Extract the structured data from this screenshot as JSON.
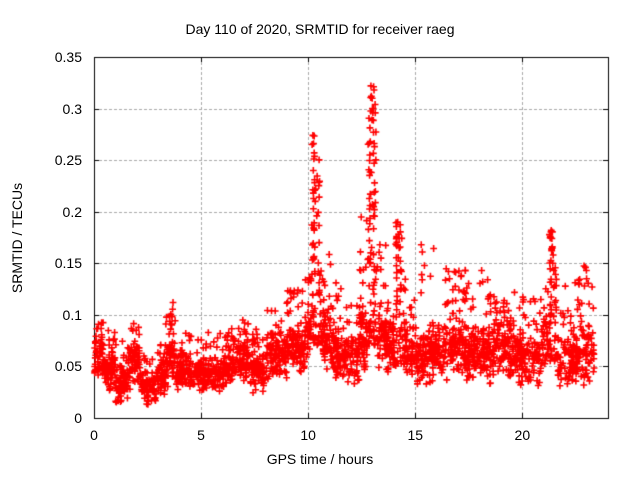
{
  "chart_data": {
    "type": "scatter",
    "title": "Day 110 of 2020, SRMTID for receiver raeg",
    "xlabel": "GPS time / hours",
    "ylabel": "SRMTID / TECUs",
    "xlim": [
      0,
      24
    ],
    "ylim": [
      0,
      0.35
    ],
    "xticks": [
      "0",
      "5",
      "10",
      "15",
      "20"
    ],
    "yticks": [
      "0",
      "0.05",
      "0.1",
      "0.15",
      "0.2",
      "0.25",
      "0.3",
      "0.35"
    ],
    "grid": true,
    "grid_style": "dashed",
    "grid_color": "#a8a8a8",
    "marker": "+",
    "marker_color": "#ff0000",
    "legend": "none",
    "data_x_range": [
      0.03,
      23.35
    ],
    "data_y_range": [
      0.008,
      0.322
    ],
    "peaks": [
      [
        3.67,
        0.1055
      ],
      [
        3.69,
        0.112
      ],
      [
        9.15,
        0.122
      ],
      [
        9.2,
        0.116
      ],
      [
        10.22,
        0.274
      ],
      [
        10.25,
        0.266
      ],
      [
        10.28,
        0.257
      ],
      [
        10.24,
        0.24
      ],
      [
        10.3,
        0.231
      ],
      [
        10.35,
        0.222
      ],
      [
        10.33,
        0.21
      ],
      [
        10.4,
        0.196
      ],
      [
        11.3,
        0.131
      ],
      [
        12.45,
        0.143
      ],
      [
        12.55,
        0.131
      ],
      [
        12.93,
        0.322
      ],
      [
        12.95,
        0.312
      ],
      [
        12.99,
        0.31
      ],
      [
        13.0,
        0.3
      ],
      [
        13.02,
        0.296
      ],
      [
        12.98,
        0.289
      ],
      [
        13.05,
        0.277
      ],
      [
        12.9,
        0.268
      ],
      [
        12.88,
        0.255
      ],
      [
        13.08,
        0.247
      ],
      [
        12.95,
        0.238
      ],
      [
        13.1,
        0.228
      ],
      [
        12.92,
        0.217
      ],
      [
        13.0,
        0.207
      ],
      [
        13.06,
        0.196
      ],
      [
        13.35,
        0.168
      ],
      [
        13.4,
        0.155
      ],
      [
        14.18,
        0.19
      ],
      [
        14.22,
        0.178
      ],
      [
        14.25,
        0.165
      ],
      [
        14.3,
        0.152
      ],
      [
        15.28,
        0.168
      ],
      [
        15.33,
        0.161
      ],
      [
        15.3,
        0.139
      ],
      [
        16.55,
        0.142
      ],
      [
        16.6,
        0.135
      ],
      [
        17.15,
        0.138
      ],
      [
        18.1,
        0.143
      ],
      [
        18.15,
        0.132
      ],
      [
        21.35,
        0.182
      ],
      [
        21.38,
        0.174
      ],
      [
        21.4,
        0.166
      ],
      [
        21.44,
        0.158
      ],
      [
        21.42,
        0.15
      ],
      [
        21.47,
        0.143
      ],
      [
        22.95,
        0.146
      ],
      [
        23.0,
        0.135
      ],
      [
        22.9,
        0.128
      ]
    ],
    "density_segments": [
      {
        "x0": 0.0,
        "x1": 0.45,
        "n": 55,
        "ylo": 0.035,
        "yhi": 0.09,
        "ymax": 0.098,
        "tail": 0.1
      },
      {
        "x0": 0.45,
        "x1": 1.0,
        "n": 70,
        "ylo": 0.022,
        "yhi": 0.07,
        "ymax": 0.085,
        "tail": 0.08
      },
      {
        "x0": 1.0,
        "x1": 1.6,
        "n": 75,
        "ylo": 0.013,
        "yhi": 0.055,
        "ymax": 0.075,
        "tail": 0.08
      },
      {
        "x0": 1.6,
        "x1": 2.15,
        "n": 70,
        "ylo": 0.025,
        "yhi": 0.08,
        "ymax": 0.092,
        "tail": 0.08
      },
      {
        "x0": 2.15,
        "x1": 2.9,
        "n": 85,
        "ylo": 0.012,
        "yhi": 0.05,
        "ymax": 0.062,
        "tail": 0.08
      },
      {
        "x0": 2.9,
        "x1": 3.35,
        "n": 55,
        "ylo": 0.018,
        "yhi": 0.06,
        "ymax": 0.075,
        "tail": 0.1
      },
      {
        "x0": 3.35,
        "x1": 3.8,
        "n": 55,
        "ylo": 0.03,
        "yhi": 0.09,
        "ymax": 0.105,
        "tail": 0.12
      },
      {
        "x0": 3.8,
        "x1": 4.5,
        "n": 80,
        "ylo": 0.025,
        "yhi": 0.07,
        "ymax": 0.085,
        "tail": 0.08
      },
      {
        "x0": 4.5,
        "x1": 5.25,
        "n": 80,
        "ylo": 0.02,
        "yhi": 0.062,
        "ymax": 0.08,
        "tail": 0.08
      },
      {
        "x0": 5.25,
        "x1": 6.25,
        "n": 100,
        "ylo": 0.022,
        "yhi": 0.065,
        "ymax": 0.085,
        "tail": 0.08
      },
      {
        "x0": 6.25,
        "x1": 7.2,
        "n": 100,
        "ylo": 0.03,
        "yhi": 0.08,
        "ymax": 0.095,
        "tail": 0.1
      },
      {
        "x0": 7.2,
        "x1": 8.0,
        "n": 90,
        "ylo": 0.022,
        "yhi": 0.072,
        "ymax": 0.088,
        "tail": 0.08
      },
      {
        "x0": 8.0,
        "x1": 9.0,
        "n": 110,
        "ylo": 0.035,
        "yhi": 0.09,
        "ymax": 0.105,
        "tail": 0.1
      },
      {
        "x0": 9.0,
        "x1": 9.85,
        "n": 105,
        "ylo": 0.04,
        "yhi": 0.095,
        "ymax": 0.125,
        "tail": 0.12
      },
      {
        "x0": 9.85,
        "x1": 10.15,
        "n": 40,
        "ylo": 0.05,
        "yhi": 0.11,
        "ymax": 0.14,
        "tail": 0.15
      },
      {
        "x0": 10.15,
        "x1": 10.6,
        "n": 65,
        "ylo": 0.07,
        "yhi": 0.16,
        "ymax": 0.274,
        "tail": 0.35,
        "cols": 2
      },
      {
        "x0": 10.6,
        "x1": 11.05,
        "n": 60,
        "ylo": 0.045,
        "yhi": 0.11,
        "ymax": 0.165,
        "tail": 0.15
      },
      {
        "x0": 11.05,
        "x1": 11.55,
        "n": 65,
        "ylo": 0.035,
        "yhi": 0.09,
        "ymax": 0.13,
        "tail": 0.1
      },
      {
        "x0": 11.55,
        "x1": 12.4,
        "n": 90,
        "ylo": 0.03,
        "yhi": 0.085,
        "ymax": 0.115,
        "tail": 0.08
      },
      {
        "x0": 12.4,
        "x1": 12.75,
        "n": 55,
        "ylo": 0.045,
        "yhi": 0.11,
        "ymax": 0.2,
        "tail": 0.2
      },
      {
        "x0": 12.75,
        "x1": 13.2,
        "n": 85,
        "ylo": 0.07,
        "yhi": 0.18,
        "ymax": 0.322,
        "tail": 0.4,
        "cols": 2
      },
      {
        "x0": 13.2,
        "x1": 13.65,
        "n": 60,
        "ylo": 0.045,
        "yhi": 0.11,
        "ymax": 0.17,
        "tail": 0.15
      },
      {
        "x0": 13.65,
        "x1": 14.05,
        "n": 55,
        "ylo": 0.04,
        "yhi": 0.1,
        "ymax": 0.125,
        "tail": 0.1
      },
      {
        "x0": 14.05,
        "x1": 14.4,
        "n": 50,
        "ylo": 0.05,
        "yhi": 0.12,
        "ymax": 0.19,
        "tail": 0.3,
        "cols": 2
      },
      {
        "x0": 14.4,
        "x1": 15.0,
        "n": 70,
        "ylo": 0.03,
        "yhi": 0.095,
        "ymax": 0.135,
        "tail": 0.1
      },
      {
        "x0": 15.0,
        "x1": 16.2,
        "n": 135,
        "ylo": 0.03,
        "yhi": 0.095,
        "ymax": 0.17,
        "tail": 0.1
      },
      {
        "x0": 16.2,
        "x1": 17.4,
        "n": 140,
        "ylo": 0.035,
        "yhi": 0.1,
        "ymax": 0.145,
        "tail": 0.12
      },
      {
        "x0": 17.4,
        "x1": 18.6,
        "n": 140,
        "ylo": 0.032,
        "yhi": 0.095,
        "ymax": 0.14,
        "tail": 0.1
      },
      {
        "x0": 18.6,
        "x1": 19.8,
        "n": 140,
        "ylo": 0.035,
        "yhi": 0.1,
        "ymax": 0.125,
        "tail": 0.1
      },
      {
        "x0": 19.8,
        "x1": 20.9,
        "n": 120,
        "ylo": 0.03,
        "yhi": 0.09,
        "ymax": 0.12,
        "tail": 0.1
      },
      {
        "x0": 20.9,
        "x1": 21.2,
        "n": 35,
        "ylo": 0.04,
        "yhi": 0.1,
        "ymax": 0.13,
        "tail": 0.15
      },
      {
        "x0": 21.2,
        "x1": 21.65,
        "n": 55,
        "ylo": 0.055,
        "yhi": 0.13,
        "ymax": 0.182,
        "tail": 0.3,
        "cols": 2
      },
      {
        "x0": 21.65,
        "x1": 22.4,
        "n": 80,
        "ylo": 0.028,
        "yhi": 0.09,
        "ymax": 0.13,
        "tail": 0.1
      },
      {
        "x0": 22.4,
        "x1": 23.35,
        "n": 110,
        "ylo": 0.03,
        "yhi": 0.1,
        "ymax": 0.148,
        "tail": 0.15
      }
    ]
  }
}
